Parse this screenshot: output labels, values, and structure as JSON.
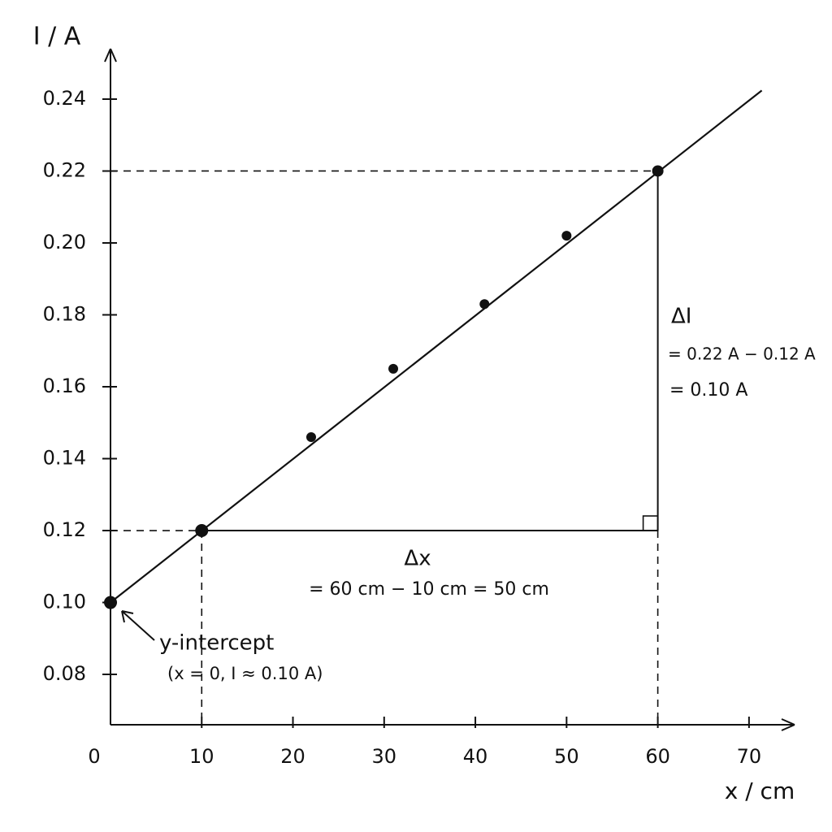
{
  "chart_data": {
    "type": "scatter",
    "x_label": "x / cm",
    "y_label": "I / A",
    "x": [
      0,
      10,
      22,
      31,
      41,
      50,
      60
    ],
    "values": [
      0.1,
      0.12,
      0.146,
      0.165,
      0.183,
      0.202,
      0.22
    ],
    "color": "#111111",
    "fit_line": {
      "x": [
        0,
        71.4
      ],
      "y": [
        0.1,
        0.2424
      ]
    },
    "xlim": [
      0,
      75
    ],
    "ylim": [
      0.066,
      0.254
    ],
    "xticks": [
      0,
      10,
      20,
      30,
      40,
      50,
      60,
      70
    ],
    "yticks": [
      0.08,
      {
        "value": 0.1,
        "label": "0.10"
      },
      0.12,
      0.14,
      0.16,
      0.18,
      {
        "value": 0.2,
        "label": "0.20"
      },
      0.22,
      0.24
    ],
    "annotations": [
      "ΔI",
      "= 0.22 A − 0.12 A",
      "= 0.10 A",
      "Δx",
      "= 60 cm − 10 cm = 50 cm",
      "y-intercept",
      "(x = 0, I ≈ 0.10 A)"
    ]
  }
}
